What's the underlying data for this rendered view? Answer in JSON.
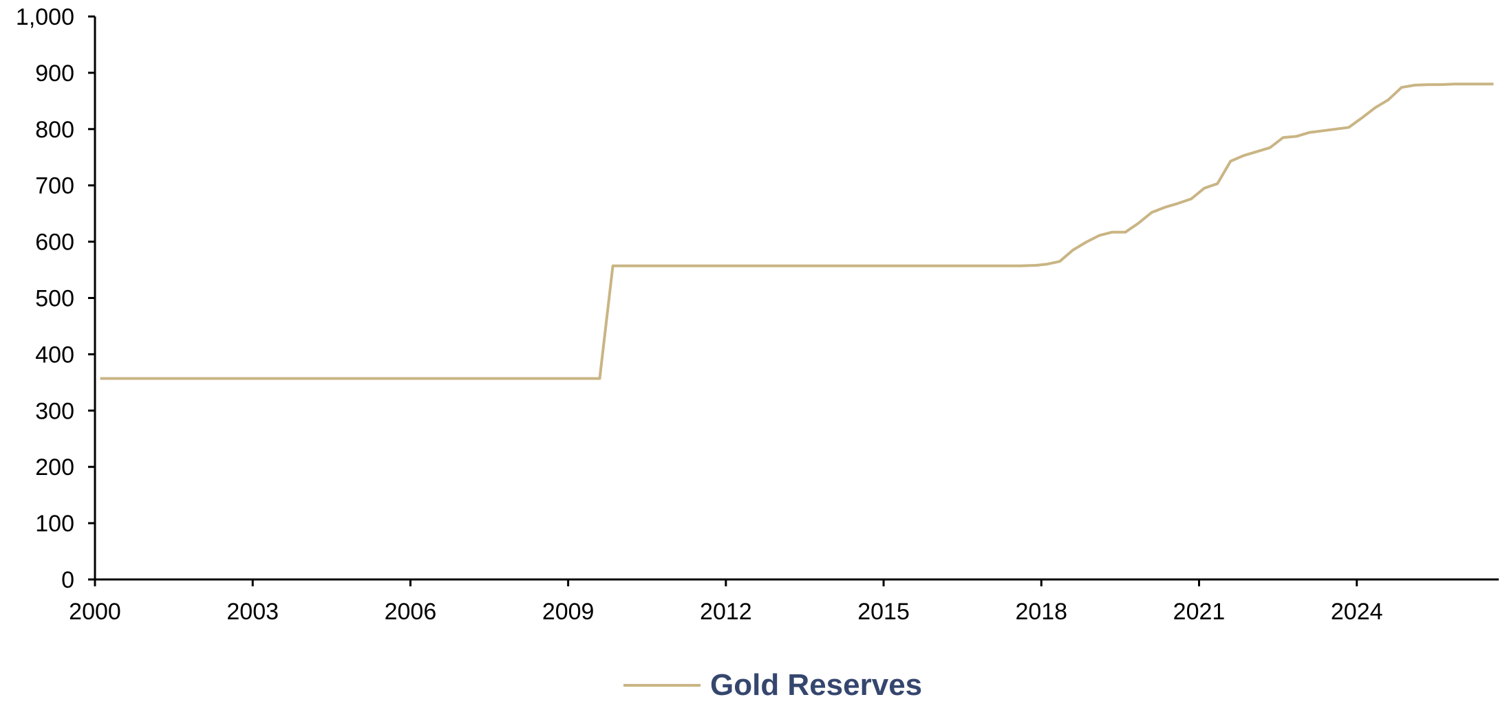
{
  "chart_data": {
    "type": "line",
    "title": "",
    "xlabel": "",
    "ylabel": "",
    "xlim": [
      2000,
      2026.7
    ],
    "ylim": [
      0,
      1000
    ],
    "x_ticks": [
      2000,
      2003,
      2006,
      2009,
      2012,
      2015,
      2018,
      2021,
      2024
    ],
    "x_tick_labels": [
      "2000",
      "2003",
      "2006",
      "2009",
      "2012",
      "2015",
      "2018",
      "2021",
      "2024"
    ],
    "y_ticks": [
      0,
      100,
      200,
      300,
      400,
      500,
      600,
      700,
      800,
      900,
      1000
    ],
    "y_tick_labels": [
      "0",
      "100",
      "200",
      "300",
      "400",
      "500",
      "600",
      "700",
      "800",
      "900",
      "1,000"
    ],
    "grid": false,
    "legend_position": "bottom-center",
    "series": [
      {
        "name": "Gold Reserves",
        "color": "#C9B584",
        "x": [
          2000.1,
          2004.75,
          2009.6,
          2009.85,
          2017.6,
          2017.9,
          2018.1,
          2018.35,
          2018.6,
          2018.85,
          2019.1,
          2019.35,
          2019.6,
          2019.85,
          2020.1,
          2020.35,
          2020.6,
          2020.85,
          2021.1,
          2021.35,
          2021.6,
          2021.85,
          2022.1,
          2022.35,
          2022.6,
          2022.85,
          2023.1,
          2023.35,
          2023.6,
          2023.85,
          2024.1,
          2024.35,
          2024.6,
          2024.85,
          2025.1,
          2025.35,
          2025.6,
          2025.85,
          2026.6
        ],
        "values": [
          357,
          357,
          357,
          557,
          557,
          558,
          560,
          565,
          585,
          599,
          611,
          617,
          617,
          633,
          652,
          661,
          668,
          676,
          695,
          703,
          743,
          753,
          760,
          767,
          785,
          787,
          794,
          797,
          800,
          803,
          820,
          838,
          852,
          874,
          878,
          879,
          879,
          880,
          880
        ]
      }
    ]
  }
}
